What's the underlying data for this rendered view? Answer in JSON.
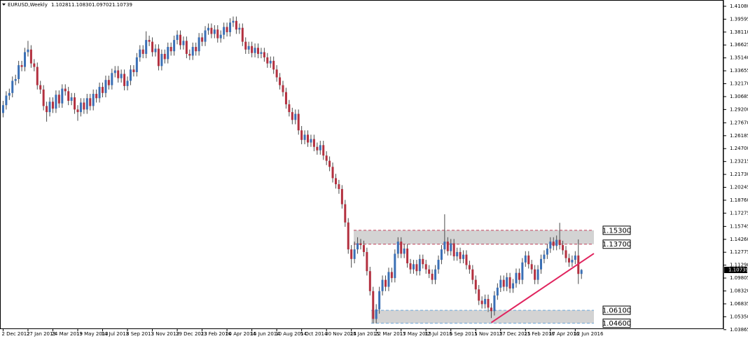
{
  "chart_data": {
    "type": "candlestick",
    "title": "EURUSD,Weekly",
    "header_values": [
      1.10281,
      1.1083,
      1.09702,
      1.10739
    ],
    "header_labels": [
      "1.10281",
      "1.10830",
      "1.09702",
      "1.10739"
    ],
    "bull_color": "#3a6fb5",
    "bear_color": "#b3303f",
    "wick_color": "#4a4a4a",
    "xlim": [
      -1,
      231
    ],
    "ylim": [
      1.0393,
      1.4164
    ],
    "xticks": [
      {
        "value": 0,
        "label": "2 Dec 2012"
      },
      {
        "value": 8,
        "label": "27 Jan 2013"
      },
      {
        "value": 16,
        "label": "24 Mar 2013"
      },
      {
        "value": 24,
        "label": "19 May 2013"
      },
      {
        "value": 32,
        "label": "14 Jul 2013"
      },
      {
        "value": 40,
        "label": "8 Sep 2013"
      },
      {
        "value": 48,
        "label": "3 Nov 2013"
      },
      {
        "value": 56,
        "label": "29 Dec 2013"
      },
      {
        "value": 64,
        "label": "23 Feb 2014"
      },
      {
        "value": 72,
        "label": "20 Apr 2014"
      },
      {
        "value": 80,
        "label": "15 Jun 2014"
      },
      {
        "value": 88,
        "label": "10 Aug 2014"
      },
      {
        "value": 96,
        "label": "5 Oct 2014"
      },
      {
        "value": 104,
        "label": "30 Nov 2014"
      },
      {
        "value": 112,
        "label": "25 Jan 2015"
      },
      {
        "value": 120,
        "label": "22 Mar 2015"
      },
      {
        "value": 128,
        "label": "17 May 2015"
      },
      {
        "value": 136,
        "label": "12 Jul 2015"
      },
      {
        "value": 144,
        "label": "6 Sep 2015"
      },
      {
        "value": 152,
        "label": "1 Nov 2015"
      },
      {
        "value": 160,
        "label": "27 Dec 2015"
      },
      {
        "value": 168,
        "label": "21 Feb 2016"
      },
      {
        "value": 176,
        "label": "17 Apr 2016"
      },
      {
        "value": 184,
        "label": "12 Jun 2016"
      }
    ],
    "yticks": [
      {
        "value": 1.4108,
        "label": "1.41080"
      },
      1.39595,
      {
        "value": 1.3811,
        "label": "1.38110"
      },
      1.36625,
      {
        "value": 1.3514,
        "label": "1.35140"
      },
      1.33655,
      {
        "value": 1.3217,
        "label": "1.32170"
      },
      1.30685,
      {
        "value": 1.292,
        "label": "1.29200"
      },
      {
        "value": 1.2767,
        "label": "1.27670"
      },
      1.26185,
      {
        "value": 1.247,
        "label": "1.24700"
      },
      1.23215,
      {
        "value": 1.2173,
        "label": "1.21730"
      },
      1.20245,
      {
        "value": 1.1876,
        "label": "1.18760"
      },
      1.17275,
      1.15745,
      {
        "value": 1.1426,
        "label": "1.14260"
      },
      1.12775,
      {
        "value": 1.1129,
        "label": "1.11290"
      },
      1.09805,
      {
        "value": 1.0832,
        "label": "1.08320"
      },
      1.06835,
      {
        "value": 1.0535,
        "label": "1.05350"
      },
      1.03865
    ],
    "levels": [
      {
        "value": 1.153,
        "label": "1.15300",
        "color": "#c0405a"
      },
      {
        "value": 1.137,
        "label": "1.13700",
        "color": "#c0405a"
      },
      {
        "value": 1.061,
        "label": "1.06100",
        "color": "#6fa6d8"
      },
      {
        "value": 1.046,
        "label": "1.04600",
        "color": "#6fa6d8"
      }
    ],
    "trendline": {
      "color": "#e0245e",
      "x": [
        157,
        190
      ],
      "y": [
        1.0468,
        1.1263
      ]
    },
    "candles": [
      [
        1.288,
        1.302,
        1.283,
        1.297
      ],
      [
        1.297,
        1.313,
        1.292,
        1.308
      ],
      [
        1.308,
        1.316,
        1.303,
        1.311
      ],
      [
        1.311,
        1.33,
        1.306,
        1.325
      ],
      [
        1.325,
        1.332,
        1.32,
        1.327
      ],
      [
        1.327,
        1.348,
        1.322,
        1.343
      ],
      [
        1.343,
        1.348,
        1.336,
        1.341
      ],
      [
        1.341,
        1.363,
        1.336,
        1.358
      ],
      [
        1.358,
        1.371,
        1.353,
        1.361
      ],
      [
        1.361,
        1.366,
        1.34,
        1.345
      ],
      [
        1.345,
        1.35,
        1.336,
        1.341
      ],
      [
        1.341,
        1.346,
        1.315,
        1.32
      ],
      [
        1.32,
        1.325,
        1.31,
        1.315
      ],
      [
        1.315,
        1.32,
        1.291,
        1.296
      ],
      [
        1.296,
        1.301,
        1.278,
        1.289
      ],
      [
        1.289,
        1.306,
        1.284,
        1.301
      ],
      [
        1.301,
        1.306,
        1.288,
        1.293
      ],
      [
        1.293,
        1.314,
        1.288,
        1.309
      ],
      [
        1.309,
        1.314,
        1.294,
        1.299
      ],
      [
        1.299,
        1.321,
        1.294,
        1.316
      ],
      [
        1.316,
        1.321,
        1.308,
        1.313
      ],
      [
        1.313,
        1.318,
        1.297,
        1.302
      ],
      [
        1.302,
        1.311,
        1.297,
        1.306
      ],
      [
        1.306,
        1.311,
        1.287,
        1.292
      ],
      [
        1.292,
        1.297,
        1.279,
        1.289
      ],
      [
        1.289,
        1.305,
        1.284,
        1.3
      ],
      [
        1.3,
        1.305,
        1.287,
        1.292
      ],
      [
        1.292,
        1.31,
        1.287,
        1.305
      ],
      [
        1.305,
        1.31,
        1.291,
        1.296
      ],
      [
        1.296,
        1.315,
        1.291,
        1.31
      ],
      [
        1.31,
        1.315,
        1.3,
        1.305
      ],
      [
        1.305,
        1.323,
        1.3,
        1.318
      ],
      [
        1.318,
        1.323,
        1.306,
        1.311
      ],
      [
        1.311,
        1.331,
        1.306,
        1.326
      ],
      [
        1.326,
        1.331,
        1.315,
        1.32
      ],
      [
        1.32,
        1.339,
        1.315,
        1.334
      ],
      [
        1.334,
        1.342,
        1.329,
        1.337
      ],
      [
        1.337,
        1.342,
        1.323,
        1.328
      ],
      [
        1.328,
        1.338,
        1.323,
        1.333
      ],
      [
        1.333,
        1.338,
        1.314,
        1.319
      ],
      [
        1.319,
        1.33,
        1.314,
        1.325
      ],
      [
        1.325,
        1.343,
        1.32,
        1.338
      ],
      [
        1.338,
        1.343,
        1.33,
        1.335
      ],
      [
        1.335,
        1.357,
        1.33,
        1.352
      ],
      [
        1.352,
        1.366,
        1.347,
        1.361
      ],
      [
        1.361,
        1.366,
        1.351,
        1.356
      ],
      [
        1.356,
        1.382,
        1.351,
        1.372
      ],
      [
        1.372,
        1.377,
        1.365,
        1.37
      ],
      [
        1.37,
        1.375,
        1.353,
        1.358
      ],
      [
        1.358,
        1.367,
        1.353,
        1.362
      ],
      [
        1.362,
        1.367,
        1.337,
        1.342
      ],
      [
        1.342,
        1.361,
        1.337,
        1.356
      ],
      [
        1.356,
        1.361,
        1.345,
        1.35
      ],
      [
        1.35,
        1.369,
        1.345,
        1.364
      ],
      [
        1.364,
        1.369,
        1.354,
        1.359
      ],
      [
        1.359,
        1.377,
        1.354,
        1.372
      ],
      [
        1.372,
        1.383,
        1.367,
        1.378
      ],
      [
        1.378,
        1.383,
        1.361,
        1.366
      ],
      [
        1.366,
        1.376,
        1.361,
        1.371
      ],
      [
        1.371,
        1.376,
        1.351,
        1.356
      ],
      [
        1.356,
        1.361,
        1.349,
        1.354
      ],
      [
        1.354,
        1.369,
        1.349,
        1.364
      ],
      [
        1.364,
        1.369,
        1.354,
        1.359
      ],
      [
        1.359,
        1.38,
        1.354,
        1.375
      ],
      [
        1.375,
        1.38,
        1.365,
        1.37
      ],
      [
        1.37,
        1.388,
        1.365,
        1.383
      ],
      [
        1.383,
        1.391,
        1.378,
        1.386
      ],
      [
        1.386,
        1.391,
        1.374,
        1.379
      ],
      [
        1.379,
        1.389,
        1.374,
        1.384
      ],
      [
        1.384,
        1.389,
        1.369,
        1.374
      ],
      [
        1.374,
        1.383,
        1.369,
        1.378
      ],
      [
        1.378,
        1.392,
        1.373,
        1.387
      ],
      [
        1.387,
        1.392,
        1.376,
        1.381
      ],
      [
        1.381,
        1.397,
        1.376,
        1.392
      ],
      [
        1.392,
        1.399,
        1.387,
        1.394
      ],
      [
        1.394,
        1.399,
        1.379,
        1.384
      ],
      [
        1.384,
        1.391,
        1.379,
        1.386
      ],
      [
        1.386,
        1.391,
        1.365,
        1.37
      ],
      [
        1.37,
        1.375,
        1.356,
        1.361
      ],
      [
        1.361,
        1.37,
        1.356,
        1.365
      ],
      [
        1.365,
        1.37,
        1.352,
        1.357
      ],
      [
        1.357,
        1.368,
        1.352,
        1.363
      ],
      [
        1.363,
        1.368,
        1.351,
        1.356
      ],
      [
        1.356,
        1.363,
        1.351,
        1.358
      ],
      [
        1.358,
        1.363,
        1.347,
        1.352
      ],
      [
        1.352,
        1.357,
        1.34,
        1.345
      ],
      [
        1.345,
        1.353,
        1.34,
        1.348
      ],
      [
        1.348,
        1.353,
        1.333,
        1.338
      ],
      [
        1.338,
        1.343,
        1.324,
        1.329
      ],
      [
        1.329,
        1.334,
        1.315,
        1.32
      ],
      [
        1.32,
        1.325,
        1.307,
        1.312
      ],
      [
        1.312,
        1.317,
        1.293,
        1.298
      ],
      [
        1.298,
        1.303,
        1.284,
        1.289
      ],
      [
        1.289,
        1.294,
        1.275,
        1.28
      ],
      [
        1.28,
        1.292,
        1.275,
        1.287
      ],
      [
        1.287,
        1.292,
        1.263,
        1.268
      ],
      [
        1.268,
        1.273,
        1.252,
        1.257
      ],
      [
        1.257,
        1.268,
        1.252,
        1.263
      ],
      [
        1.263,
        1.268,
        1.249,
        1.254
      ],
      [
        1.254,
        1.263,
        1.249,
        1.258
      ],
      [
        1.258,
        1.263,
        1.244,
        1.249
      ],
      [
        1.249,
        1.254,
        1.24,
        1.245
      ],
      [
        1.245,
        1.256,
        1.24,
        1.251
      ],
      [
        1.251,
        1.256,
        1.234,
        1.239
      ],
      [
        1.239,
        1.244,
        1.228,
        1.233
      ],
      [
        1.233,
        1.238,
        1.221,
        1.226
      ],
      [
        1.226,
        1.231,
        1.208,
        1.213
      ],
      [
        1.213,
        1.218,
        1.201,
        1.206
      ],
      [
        1.206,
        1.211,
        1.195,
        1.2005
      ],
      [
        1.2005,
        1.205,
        1.178,
        1.183
      ],
      [
        1.183,
        1.188,
        1.157,
        1.162
      ],
      [
        1.162,
        1.167,
        1.126,
        1.131
      ],
      [
        1.131,
        1.136,
        1.11,
        1.12
      ],
      [
        1.12,
        1.14,
        1.115,
        1.131
      ],
      [
        1.131,
        1.145,
        1.126,
        1.138
      ],
      [
        1.138,
        1.143,
        1.131,
        1.136
      ],
      [
        1.136,
        1.141,
        1.123,
        1.128
      ],
      [
        1.128,
        1.133,
        1.101,
        1.106
      ],
      [
        1.106,
        1.111,
        1.078,
        1.083
      ],
      [
        1.083,
        1.088,
        1.046,
        1.051
      ],
      [
        1.051,
        1.068,
        1.046,
        1.062
      ],
      [
        1.062,
        1.088,
        1.057,
        1.083
      ],
      [
        1.083,
        1.101,
        1.078,
        1.096
      ],
      [
        1.096,
        1.101,
        1.083,
        1.088
      ],
      [
        1.088,
        1.11,
        1.083,
        1.105
      ],
      [
        1.105,
        1.11,
        1.093,
        1.098
      ],
      [
        1.098,
        1.131,
        1.093,
        1.126
      ],
      [
        1.126,
        1.145,
        1.121,
        1.14
      ],
      [
        1.14,
        1.145,
        1.121,
        1.126
      ],
      [
        1.126,
        1.137,
        1.121,
        1.132
      ],
      [
        1.132,
        1.137,
        1.11,
        1.115
      ],
      [
        1.115,
        1.12,
        1.103,
        1.108
      ],
      [
        1.108,
        1.119,
        1.103,
        1.114
      ],
      [
        1.114,
        1.119,
        1.101,
        1.106
      ],
      [
        1.106,
        1.125,
        1.101,
        1.12
      ],
      [
        1.12,
        1.125,
        1.109,
        1.114
      ],
      [
        1.114,
        1.119,
        1.103,
        1.108
      ],
      [
        1.108,
        1.113,
        1.098,
        1.103
      ],
      [
        1.103,
        1.108,
        1.091,
        1.096
      ],
      [
        1.096,
        1.113,
        1.091,
        1.108
      ],
      [
        1.108,
        1.124,
        1.103,
        1.119
      ],
      [
        1.119,
        1.136,
        1.114,
        1.131
      ],
      [
        1.131,
        1.1714,
        1.126,
        1.14
      ],
      [
        1.14,
        1.145,
        1.124,
        1.129
      ],
      [
        1.129,
        1.143,
        1.124,
        1.138
      ],
      [
        1.138,
        1.143,
        1.118,
        1.123
      ],
      [
        1.123,
        1.133,
        1.118,
        1.128
      ],
      [
        1.128,
        1.133,
        1.115,
        1.12
      ],
      [
        1.12,
        1.13,
        1.115,
        1.125
      ],
      [
        1.125,
        1.13,
        1.108,
        1.113
      ],
      [
        1.113,
        1.118,
        1.103,
        1.108
      ],
      [
        1.108,
        1.113,
        1.091,
        1.096
      ],
      [
        1.096,
        1.101,
        1.08,
        1.085
      ],
      [
        1.085,
        1.09,
        1.067,
        1.072
      ],
      [
        1.072,
        1.077,
        1.063,
        1.068
      ],
      [
        1.068,
        1.079,
        1.063,
        1.074
      ],
      [
        1.074,
        1.079,
        1.059,
        1.064
      ],
      [
        1.064,
        1.069,
        1.052,
        1.06
      ],
      [
        1.06,
        1.083,
        1.055,
        1.078
      ],
      [
        1.078,
        1.092,
        1.073,
        1.087
      ],
      [
        1.087,
        1.101,
        1.082,
        1.096
      ],
      [
        1.096,
        1.101,
        1.083,
        1.088
      ],
      [
        1.088,
        1.104,
        1.083,
        1.099
      ],
      [
        1.099,
        1.104,
        1.081,
        1.086
      ],
      [
        1.086,
        1.097,
        1.081,
        1.092
      ],
      [
        1.092,
        1.109,
        1.087,
        1.104
      ],
      [
        1.104,
        1.109,
        1.091,
        1.096
      ],
      [
        1.096,
        1.121,
        1.091,
        1.116
      ],
      [
        1.116,
        1.129,
        1.111,
        1.124
      ],
      [
        1.124,
        1.129,
        1.109,
        1.114
      ],
      [
        1.114,
        1.119,
        1.103,
        1.108
      ],
      [
        1.108,
        1.113,
        1.091,
        1.096
      ],
      [
        1.096,
        1.113,
        1.091,
        1.108
      ],
      [
        1.108,
        1.125,
        1.103,
        1.12
      ],
      [
        1.12,
        1.13,
        1.115,
        1.125
      ],
      [
        1.125,
        1.137,
        1.12,
        1.132
      ],
      [
        1.132,
        1.145,
        1.127,
        1.14
      ],
      [
        1.14,
        1.145,
        1.13,
        1.135
      ],
      [
        1.135,
        1.147,
        1.13,
        1.142
      ],
      [
        1.142,
        1.1616,
        1.131,
        1.136
      ],
      [
        1.136,
        1.141,
        1.125,
        1.13
      ],
      [
        1.13,
        1.135,
        1.116,
        1.121
      ],
      [
        1.121,
        1.126,
        1.111,
        1.116
      ],
      [
        1.116,
        1.124,
        1.111,
        1.119
      ],
      [
        1.119,
        1.129,
        1.114,
        1.124
      ],
      [
        1.124,
        1.1425,
        1.0912,
        1.1028
      ],
      [
        1.10281,
        1.1083,
        1.09702,
        1.10739
      ]
    ]
  }
}
